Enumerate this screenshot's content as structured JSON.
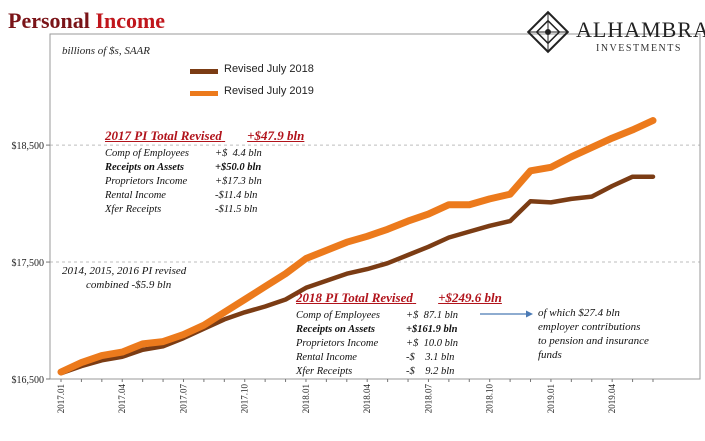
{
  "header": {
    "title_part1": "Personal",
    "title_part2": "Income",
    "units": "billions of $s, SAAR"
  },
  "logo": {
    "name": "ALHAMBRA",
    "subtitle": "INVESTMENTS",
    "icon": "diamond-lattice-icon"
  },
  "colors": {
    "series_2018": "#7b3c14",
    "series_2019": "#ec7a1c",
    "grid": "#bdbdbd",
    "title_dark": "#7a1418",
    "title_red": "#c0161c"
  },
  "annotation_2017": {
    "header_label": "2017 PI Total Revised",
    "header_value": "+$47.9  bln",
    "rows": [
      {
        "label": "Comp of Employees",
        "value": "+$  4.4 bln",
        "bold": false
      },
      {
        "label": "Receipts on Assets",
        "value": "+$50.0 bln",
        "bold": true
      },
      {
        "label": "Proprietors Income",
        "value": "+$17.3 bln",
        "bold": false
      },
      {
        "label": "Rental Income",
        "value": "-$11.4 bln",
        "bold": false
      },
      {
        "label": "Xfer Receipts",
        "value": "-$11.5 bln",
        "bold": false
      }
    ]
  },
  "annotation_2018": {
    "header_label": "2018 PI Total Revised",
    "header_value": "+$249.6  bln",
    "rows": [
      {
        "label": "Comp of Employees",
        "value": "+$  87.1 bln",
        "bold": false
      },
      {
        "label": "Receipts on Assets",
        "value": "+$161.9 bln",
        "bold": true
      },
      {
        "label": "Proprietors Income",
        "value": "+$  10.0 bln",
        "bold": false
      },
      {
        "label": "Rental Income",
        "value": "-$    3.1 bln",
        "bold": false
      },
      {
        "label": "Xfer Receipts",
        "value": "-$    9.2 bln",
        "bold": false
      }
    ]
  },
  "note_left": {
    "line1": "2014, 2015, 2016 PI revised",
    "line2": "combined -$5.9 bln"
  },
  "note_right": {
    "line1": "of which $27.4 bln",
    "line2": "employer contributions",
    "line3": "to pension and insurance",
    "line4": "funds"
  },
  "chart_data": {
    "type": "line",
    "x": [
      "2017.01",
      "2017.02",
      "2017.03",
      "2017.04",
      "2017.05",
      "2017.06",
      "2017.07",
      "2017.08",
      "2017.09",
      "2017.10",
      "2017.11",
      "2017.12",
      "2018.01",
      "2018.02",
      "2018.03",
      "2018.04",
      "2018.05",
      "2018.06",
      "2018.07",
      "2018.08",
      "2018.09",
      "2018.10",
      "2018.11",
      "2018.12",
      "2019.01",
      "2019.02",
      "2019.03",
      "2019.04",
      "2019.05",
      "2019.06"
    ],
    "xticks": [
      "2017.01",
      "2017.04",
      "2017.07",
      "2017.10",
      "2018.01",
      "2018.04",
      "2018.07",
      "2018.10",
      "2019.01",
      "2019.04"
    ],
    "yticks": [
      16500,
      17500,
      18500
    ],
    "ytick_labels": [
      "$16,500",
      "$17,500",
      "$18,500"
    ],
    "ylim": [
      16500,
      19450
    ],
    "grid": true,
    "legend_position": "top-left",
    "series": [
      {
        "name": "Revised July 2018",
        "values": [
          16550,
          16610,
          16660,
          16690,
          16750,
          16780,
          16850,
          16930,
          17010,
          17070,
          17120,
          17180,
          17280,
          17340,
          17400,
          17440,
          17490,
          17560,
          17630,
          17710,
          17760,
          17810,
          17850,
          18020,
          18010,
          18040,
          18060,
          18150,
          18230,
          18230
        ]
      },
      {
        "name": "Revised July 2019",
        "values": [
          16560,
          16640,
          16700,
          16730,
          16800,
          16820,
          16880,
          16960,
          17070,
          17180,
          17290,
          17400,
          17530,
          17600,
          17670,
          17720,
          17780,
          17850,
          17910,
          17990,
          17990,
          18040,
          18080,
          18280,
          18310,
          18400,
          18480,
          18560,
          18630,
          18710
        ]
      }
    ]
  }
}
